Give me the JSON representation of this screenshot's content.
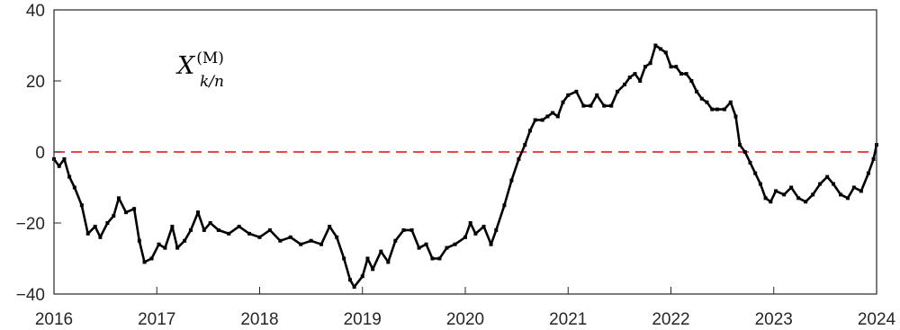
{
  "chart_data": {
    "type": "scatter",
    "title": "",
    "xlabel": "",
    "ylabel": "",
    "xlim": [
      2016,
      2024
    ],
    "ylim": [
      -40,
      40
    ],
    "xticks": [
      "2016",
      "2017",
      "2018",
      "2019",
      "2020",
      "2021",
      "2022",
      "2023",
      "2024"
    ],
    "yticks": [
      "40",
      "20",
      "0",
      "−20",
      "−40"
    ],
    "grid": false,
    "annotation": {
      "base": "X",
      "subscript": "k/n",
      "superscript": "(M)"
    },
    "reference_line": {
      "y": 0,
      "style": "dashed",
      "color": "#ff0000"
    },
    "colors": {
      "series": "#000000",
      "reference": "#ff0000"
    },
    "series": [
      {
        "points": [
          [
            2016.0,
            -2
          ],
          [
            2016.05,
            -4
          ],
          [
            2016.1,
            -2
          ],
          [
            2016.15,
            -7
          ],
          [
            2016.2,
            -10
          ],
          [
            2016.27,
            -15
          ],
          [
            2016.33,
            -23
          ],
          [
            2016.4,
            -21
          ],
          [
            2016.45,
            -24
          ],
          [
            2016.52,
            -20
          ],
          [
            2016.58,
            -18
          ],
          [
            2016.63,
            -13
          ],
          [
            2016.7,
            -17
          ],
          [
            2016.78,
            -16
          ],
          [
            2016.83,
            -25
          ],
          [
            2016.88,
            -31
          ],
          [
            2016.95,
            -30
          ],
          [
            2017.02,
            -26
          ],
          [
            2017.08,
            -27
          ],
          [
            2017.15,
            -21
          ],
          [
            2017.2,
            -27
          ],
          [
            2017.27,
            -25
          ],
          [
            2017.33,
            -22
          ],
          [
            2017.4,
            -17
          ],
          [
            2017.46,
            -22
          ],
          [
            2017.52,
            -20
          ],
          [
            2017.6,
            -22
          ],
          [
            2017.7,
            -23
          ],
          [
            2017.8,
            -21
          ],
          [
            2017.9,
            -23
          ],
          [
            2018.0,
            -24
          ],
          [
            2018.1,
            -22
          ],
          [
            2018.2,
            -25
          ],
          [
            2018.3,
            -24
          ],
          [
            2018.4,
            -26
          ],
          [
            2018.5,
            -25
          ],
          [
            2018.6,
            -26
          ],
          [
            2018.68,
            -21
          ],
          [
            2018.75,
            -24
          ],
          [
            2018.82,
            -30
          ],
          [
            2018.88,
            -36
          ],
          [
            2018.92,
            -38
          ],
          [
            2019.0,
            -35
          ],
          [
            2019.05,
            -30
          ],
          [
            2019.1,
            -33
          ],
          [
            2019.18,
            -28
          ],
          [
            2019.25,
            -31
          ],
          [
            2019.32,
            -25
          ],
          [
            2019.4,
            -22
          ],
          [
            2019.48,
            -22
          ],
          [
            2019.55,
            -27
          ],
          [
            2019.62,
            -26
          ],
          [
            2019.68,
            -30
          ],
          [
            2019.75,
            -30
          ],
          [
            2019.82,
            -27
          ],
          [
            2019.9,
            -26
          ],
          [
            2020.0,
            -24
          ],
          [
            2020.05,
            -20
          ],
          [
            2020.1,
            -23
          ],
          [
            2020.18,
            -21
          ],
          [
            2020.25,
            -26
          ],
          [
            2020.3,
            -22
          ],
          [
            2020.38,
            -15
          ],
          [
            2020.45,
            -8
          ],
          [
            2020.52,
            -2
          ],
          [
            2020.58,
            2
          ],
          [
            2020.63,
            6
          ],
          [
            2020.68,
            9
          ],
          [
            2020.75,
            9
          ],
          [
            2020.8,
            10
          ],
          [
            2020.85,
            11
          ],
          [
            2020.9,
            10
          ],
          [
            2020.95,
            14
          ],
          [
            2021.0,
            16
          ],
          [
            2021.08,
            17
          ],
          [
            2021.15,
            13
          ],
          [
            2021.22,
            13
          ],
          [
            2021.28,
            16
          ],
          [
            2021.35,
            13
          ],
          [
            2021.42,
            13
          ],
          [
            2021.48,
            17
          ],
          [
            2021.55,
            19
          ],
          [
            2021.6,
            21
          ],
          [
            2021.65,
            22
          ],
          [
            2021.7,
            20
          ],
          [
            2021.75,
            24
          ],
          [
            2021.8,
            25
          ],
          [
            2021.85,
            30
          ],
          [
            2021.9,
            29
          ],
          [
            2021.95,
            28
          ],
          [
            2022.0,
            24
          ],
          [
            2022.05,
            24
          ],
          [
            2022.1,
            22
          ],
          [
            2022.15,
            22
          ],
          [
            2022.2,
            20
          ],
          [
            2022.25,
            17
          ],
          [
            2022.3,
            15
          ],
          [
            2022.35,
            14
          ],
          [
            2022.4,
            12
          ],
          [
            2022.45,
            12
          ],
          [
            2022.52,
            12
          ],
          [
            2022.58,
            14
          ],
          [
            2022.63,
            10
          ],
          [
            2022.67,
            2
          ],
          [
            2022.72,
            0
          ],
          [
            2022.77,
            -3
          ],
          [
            2022.82,
            -6
          ],
          [
            2022.87,
            -9
          ],
          [
            2022.92,
            -13
          ],
          [
            2022.97,
            -14
          ],
          [
            2023.02,
            -11
          ],
          [
            2023.1,
            -12
          ],
          [
            2023.17,
            -10
          ],
          [
            2023.24,
            -13
          ],
          [
            2023.31,
            -14
          ],
          [
            2023.38,
            -12
          ],
          [
            2023.45,
            -9
          ],
          [
            2023.52,
            -7
          ],
          [
            2023.58,
            -9
          ],
          [
            2023.65,
            -12
          ],
          [
            2023.72,
            -13
          ],
          [
            2023.78,
            -10
          ],
          [
            2023.85,
            -11
          ],
          [
            2023.92,
            -6
          ],
          [
            2023.97,
            -2
          ],
          [
            2024.0,
            2
          ]
        ]
      }
    ]
  }
}
